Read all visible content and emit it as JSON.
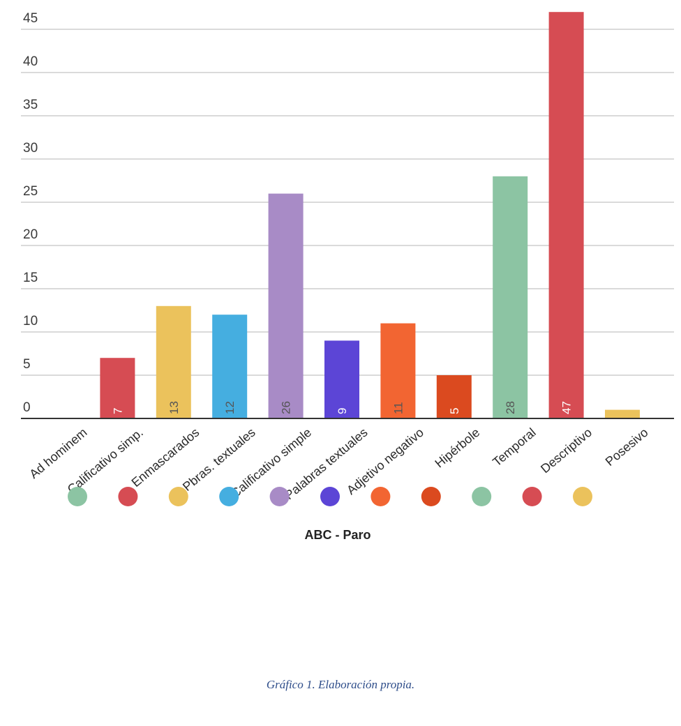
{
  "chart_data": {
    "type": "bar",
    "categories": [
      "Ad hominem",
      "Calificativo simp.",
      "Enmascarados",
      "Pbras. textuales",
      "Calificativo simple",
      "Palabras textuales",
      "Adjetivo negativo",
      "Hipérbole",
      "Temporal",
      "Descriptivo",
      "Posesivo"
    ],
    "values": [
      0,
      7,
      13,
      12,
      26,
      9,
      11,
      5,
      28,
      47,
      1
    ],
    "data_labels": [
      "",
      "7",
      "13",
      "12",
      "26",
      "9",
      "11",
      "5",
      "28",
      "47",
      ""
    ],
    "colors": [
      "#8cc4a3",
      "#d64c53",
      "#ebc25c",
      "#45aee0",
      "#a88bc6",
      "#5c45d6",
      "#f26532",
      "#db4a1f",
      "#8cc4a3",
      "#d64c53",
      "#ebc25c"
    ],
    "label_colors": [
      "#ffffff",
      "#ffffff",
      "#555555",
      "#555555",
      "#555555",
      "#ffffff",
      "#555555",
      "#ffffff",
      "#555555",
      "#ffffff",
      "#555555"
    ],
    "y_ticks": [
      0,
      5,
      10,
      15,
      20,
      25,
      30,
      35,
      40,
      45
    ],
    "ylim": [
      0,
      47
    ],
    "grid": true,
    "legend_title": "ABC - Paro",
    "legend_placement": "bottom"
  },
  "caption": "Gráfico 1. Elaboración propia."
}
